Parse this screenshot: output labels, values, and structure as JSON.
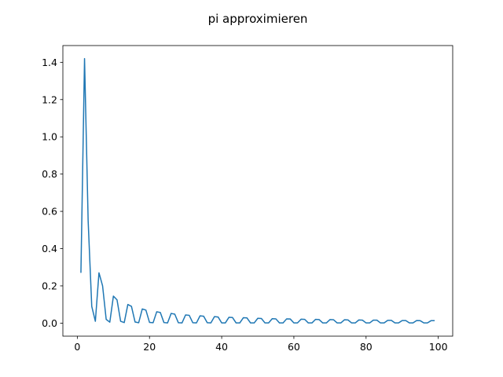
{
  "chart_data": {
    "type": "line",
    "title": "pi approximieren",
    "xlabel": "",
    "ylabel": "",
    "xlim": [
      -4,
      104
    ],
    "ylim": [
      -0.07,
      1.49
    ],
    "xticks": [
      0,
      20,
      40,
      60,
      80,
      100
    ],
    "yticks": [
      0.0,
      0.2,
      0.4,
      0.6,
      0.8,
      1.0,
      1.2,
      1.4
    ],
    "xtick_labels": [
      "0",
      "20",
      "40",
      "60",
      "80",
      "100"
    ],
    "ytick_labels": [
      "0.0",
      "0.2",
      "0.4",
      "0.6",
      "0.8",
      "1.0",
      "1.2",
      "1.4"
    ],
    "grid": false,
    "legend": "none",
    "series": [
      {
        "color": "#1f77b4",
        "x": [
          1,
          2,
          3,
          4,
          5,
          6,
          7,
          8,
          9,
          10,
          11,
          12,
          13,
          14,
          15,
          16,
          17,
          18,
          19,
          20,
          21,
          22,
          23,
          24,
          25,
          26,
          27,
          28,
          29,
          30,
          31,
          32,
          33,
          34,
          35,
          36,
          37,
          38,
          39,
          40,
          41,
          42,
          43,
          44,
          45,
          46,
          47,
          48,
          49,
          50,
          51,
          52,
          53,
          54,
          55,
          56,
          57,
          58,
          59,
          60,
          61,
          62,
          63,
          64,
          65,
          66,
          67,
          68,
          69,
          70,
          71,
          72,
          73,
          74,
          75,
          76,
          77,
          78,
          79,
          80,
          81,
          82,
          83,
          84,
          85,
          86,
          87,
          88,
          89,
          90,
          91,
          92,
          93,
          94,
          95,
          96,
          97,
          98,
          99
        ],
        "values": [
          0.27,
          1.42,
          0.55,
          0.09,
          0.01,
          0.27,
          0.2,
          0.02,
          0.005,
          0.145,
          0.125,
          0.01,
          0.003,
          0.1,
          0.09,
          0.006,
          0.002,
          0.076,
          0.07,
          0.004,
          0.002,
          0.061,
          0.057,
          0.003,
          0.001,
          0.052,
          0.048,
          0.002,
          0.001,
          0.044,
          0.042,
          0.002,
          0.001,
          0.039,
          0.037,
          0.002,
          0.001,
          0.035,
          0.033,
          0.001,
          0.001,
          0.031,
          0.03,
          0.001,
          0.001,
          0.029,
          0.028,
          0.001,
          0.001,
          0.026,
          0.025,
          0.001,
          0.001,
          0.024,
          0.023,
          0.001,
          0.001,
          0.023,
          0.022,
          0.001,
          0.001,
          0.021,
          0.02,
          0.001,
          0.001,
          0.02,
          0.019,
          0.001,
          0.001,
          0.019,
          0.018,
          0.001,
          0.001,
          0.018,
          0.017,
          0.001,
          0.001,
          0.017,
          0.016,
          0.001,
          0.001,
          0.016,
          0.016,
          0.001,
          0.001,
          0.015,
          0.015,
          0.001,
          0.001,
          0.014,
          0.014,
          0.001,
          0.001,
          0.014,
          0.013,
          0.001,
          0.001,
          0.013,
          0.013
        ]
      }
    ]
  }
}
